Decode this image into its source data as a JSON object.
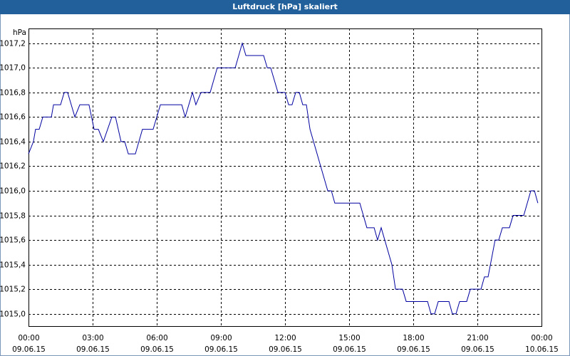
{
  "chart_data": {
    "type": "line",
    "title": "Luftdruck [hPa] skaliert",
    "y_axis_label": "hPa",
    "xlim": [
      0,
      24
    ],
    "xticks": [
      {
        "value": 0,
        "label": "00:00"
      },
      {
        "value": 3,
        "label": "03:00"
      },
      {
        "value": 6,
        "label": "06:00"
      },
      {
        "value": 9,
        "label": "09:00"
      },
      {
        "value": 12,
        "label": "12:00"
      },
      {
        "value": 15,
        "label": "15:00"
      },
      {
        "value": 18,
        "label": "18:00"
      },
      {
        "value": 21,
        "label": "21:00"
      },
      {
        "value": 24,
        "label": "00:00"
      }
    ],
    "xtick_dates": [
      "09.06.15",
      "09.06.15",
      "09.06.15",
      "09.06.15",
      "09.06.15",
      "09.06.15",
      "09.06.15",
      "09.06.15",
      "10.06.15"
    ],
    "ylim": [
      1014.9,
      1017.32
    ],
    "yticks": [
      {
        "value": 1015.0,
        "label": "1015,0"
      },
      {
        "value": 1015.2,
        "label": "1015,2"
      },
      {
        "value": 1015.4,
        "label": "1015,4"
      },
      {
        "value": 1015.6,
        "label": "1015,6"
      },
      {
        "value": 1015.8,
        "label": "1015,8"
      },
      {
        "value": 1016.0,
        "label": "1016,0"
      },
      {
        "value": 1016.2,
        "label": "1016,2"
      },
      {
        "value": 1016.4,
        "label": "1016,4"
      },
      {
        "value": 1016.6,
        "label": "1016,6"
      },
      {
        "value": 1016.8,
        "label": "1016,8"
      },
      {
        "value": 1017.0,
        "label": "1017,0"
      },
      {
        "value": 1017.2,
        "label": "1017,2"
      }
    ],
    "grid": true,
    "series": [
      {
        "color": "#0000a0",
        "x": [
          0,
          0.23,
          0.33,
          0.5,
          0.67,
          1.07,
          1.17,
          1.5,
          1.67,
          1.83,
          2.17,
          2.4,
          2.83,
          3.07,
          3.27,
          3.5,
          3.9,
          4.07,
          4.33,
          4.5,
          4.67,
          5,
          5.33,
          5.83,
          6.17,
          7.17,
          7.33,
          7.67,
          7.83,
          8.07,
          8.5,
          8.83,
          9.67,
          10,
          10.17,
          11,
          11.17,
          11.33,
          11.67,
          12,
          12.17,
          12.33,
          12.5,
          12.67,
          12.83,
          13,
          13.17,
          14,
          14.17,
          14.33,
          15.5,
          15.83,
          16.17,
          16.33,
          16.5,
          17,
          17.17,
          17.5,
          17.67,
          18.67,
          18.83,
          19,
          19.17,
          19.67,
          19.83,
          20,
          20.17,
          20.5,
          20.67,
          21.17,
          21.33,
          21.5,
          21.83,
          22,
          22.17,
          22.5,
          22.67,
          23.17,
          23.5,
          23.67,
          23.83
        ],
        "values": [
          1016.3,
          1016.4,
          1016.5,
          1016.5,
          1016.6,
          1016.6,
          1016.7,
          1016.7,
          1016.8,
          1016.8,
          1016.6,
          1016.7,
          1016.7,
          1016.5,
          1016.5,
          1016.4,
          1016.6,
          1016.6,
          1016.4,
          1016.4,
          1016.3,
          1016.3,
          1016.5,
          1016.5,
          1016.7,
          1016.7,
          1016.6,
          1016.8,
          1016.7,
          1016.8,
          1016.8,
          1017.0,
          1017.0,
          1017.2,
          1017.1,
          1017.1,
          1017.0,
          1017.0,
          1016.8,
          1016.8,
          1016.7,
          1016.7,
          1016.8,
          1016.8,
          1016.7,
          1016.7,
          1016.5,
          1016.0,
          1016.0,
          1015.9,
          1015.9,
          1015.7,
          1015.7,
          1015.6,
          1015.7,
          1015.4,
          1015.2,
          1015.2,
          1015.1,
          1015.1,
          1015.0,
          1015.0,
          1015.1,
          1015.1,
          1015.0,
          1015.0,
          1015.1,
          1015.1,
          1015.2,
          1015.2,
          1015.3,
          1015.3,
          1015.6,
          1015.6,
          1015.7,
          1015.7,
          1015.8,
          1015.8,
          1016.0,
          1016.0,
          1015.9
        ]
      }
    ]
  }
}
